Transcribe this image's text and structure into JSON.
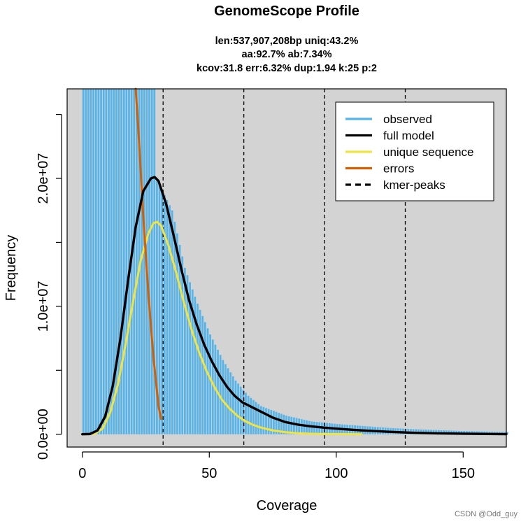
{
  "chart_data": {
    "type": "line",
    "title": "GenomeScope Profile",
    "subtitle_lines": [
      "len:537,907,208bp uniq:43.2%",
      "aa:92.7% ab:7.34%",
      "kcov:31.8 err:6.32%  dup:1.94  k:25 p:2"
    ],
    "xlabel": "Coverage",
    "ylabel": "Frequency",
    "xlim": [
      -6,
      167
    ],
    "ylim": [
      -1000000,
      27000000
    ],
    "x_ticks": [
      0,
      50,
      100,
      150
    ],
    "x_tick_labels": [
      "0",
      "50",
      "100",
      "150"
    ],
    "y_ticks": [
      0,
      5000000,
      10000000,
      15000000,
      20000000,
      25000000
    ],
    "y_tick_labels": [
      "0.0e+00",
      "",
      "1.0e+07",
      "",
      "2.0e+07",
      ""
    ],
    "background_color": "#d3d3d3",
    "grid": false,
    "legend_position": "top-right",
    "legend": [
      {
        "label": "observed",
        "color": "#56b4e9",
        "style": "solid"
      },
      {
        "label": "full model",
        "color": "#000000",
        "style": "solid"
      },
      {
        "label": "unique sequence",
        "color": "#f0e442",
        "style": "solid"
      },
      {
        "label": "errors",
        "color": "#d55e00",
        "style": "solid"
      },
      {
        "label": "kmer-peaks",
        "color": "#000000",
        "style": "dashed"
      }
    ],
    "kmer_peaks": [
      31.8,
      63.6,
      95.4,
      127.2
    ],
    "observed_histogram_color": "#56b4e9",
    "series": [
      {
        "name": "full model",
        "color": "#000000",
        "x": [
          0,
          3,
          6,
          9,
          12,
          15,
          18,
          21,
          24,
          27,
          28.5,
          30,
          33,
          36,
          39,
          42,
          45,
          48,
          51,
          54,
          57,
          60,
          63,
          66,
          70,
          75,
          80,
          85,
          90,
          95,
          100,
          110,
          120,
          130,
          140,
          150,
          160,
          167
        ],
        "y": [
          0,
          20000,
          300000,
          1400000,
          3800000,
          7500000,
          12000000,
          16200000,
          19000000,
          20000000,
          20100000,
          19800000,
          18000000,
          15500000,
          12900000,
          10500000,
          8600000,
          7000000,
          5700000,
          4600000,
          3700000,
          3000000,
          2500000,
          2200000,
          1800000,
          1300000,
          950000,
          750000,
          620000,
          520000,
          440000,
          300000,
          200000,
          120000,
          70000,
          40000,
          20000,
          10000
        ]
      },
      {
        "name": "unique sequence",
        "color": "#f0e442",
        "x": [
          2,
          5,
          8,
          11,
          14,
          17,
          20,
          23,
          26,
          28,
          29.5,
          31,
          34,
          37,
          40,
          43,
          46,
          49,
          52,
          55,
          58,
          61,
          64,
          67,
          70,
          75,
          80,
          85,
          90,
          95,
          100,
          110
        ],
        "y": [
          0,
          50000,
          450000,
          1700000,
          3900000,
          7000000,
          10400000,
          13600000,
          15700000,
          16500000,
          16600000,
          16300000,
          14700000,
          12600000,
          10300000,
          8200000,
          6400000,
          4900000,
          3700000,
          2700000,
          2000000,
          1450000,
          1050000,
          750000,
          540000,
          300000,
          160000,
          80000,
          40000,
          20000,
          10000,
          0
        ]
      },
      {
        "name": "errors",
        "color": "#d55e00",
        "x": [
          21,
          22,
          24,
          26,
          28,
          30,
          31
        ],
        "y": [
          27000000,
          24000000,
          17000000,
          11000000,
          6000000,
          2200000,
          1200000
        ]
      }
    ],
    "observed": {
      "name": "observed",
      "x": [
        0,
        5,
        10,
        15,
        20,
        25,
        28,
        29,
        30,
        35,
        40,
        45,
        50,
        55,
        60,
        65,
        70,
        80,
        90,
        100,
        110,
        120,
        130,
        140,
        150,
        160,
        167
      ],
      "y": [
        27000000,
        27000000,
        27000000,
        27000000,
        27000000,
        27000000,
        27000000,
        20000000,
        19500000,
        17500000,
        13000000,
        10200000,
        7800000,
        5800000,
        4200000,
        3000000,
        2200000,
        1450000,
        1000000,
        800000,
        650000,
        500000,
        400000,
        320000,
        250000,
        200000,
        180000
      ]
    }
  },
  "watermark": "CSDN @Odd_guy"
}
